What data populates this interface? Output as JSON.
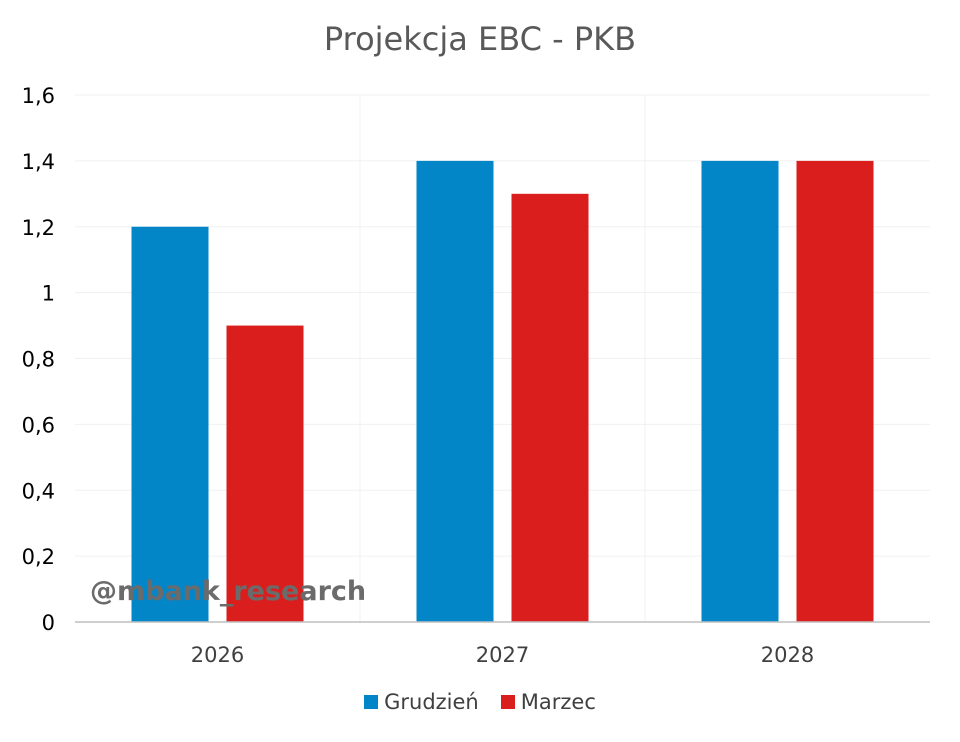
{
  "chart_data": {
    "type": "bar",
    "title": "Projekcja EBC - PKB",
    "categories": [
      "2026",
      "2027",
      "2028"
    ],
    "series": [
      {
        "name": "Grudzień",
        "values": [
          1.2,
          1.4,
          1.4
        ],
        "color": "#0286C8"
      },
      {
        "name": "Marzec",
        "values": [
          0.9,
          1.3,
          1.4
        ],
        "color": "#DA1E1E"
      }
    ],
    "ylim": [
      0,
      1.6
    ],
    "yticks": [
      "0",
      "0,2",
      "0,4",
      "0,6",
      "0,8",
      "1",
      "1,2",
      "1,4",
      "1,6"
    ],
    "grid": true,
    "legend": "bottom",
    "annotation": "@mbank_research"
  }
}
